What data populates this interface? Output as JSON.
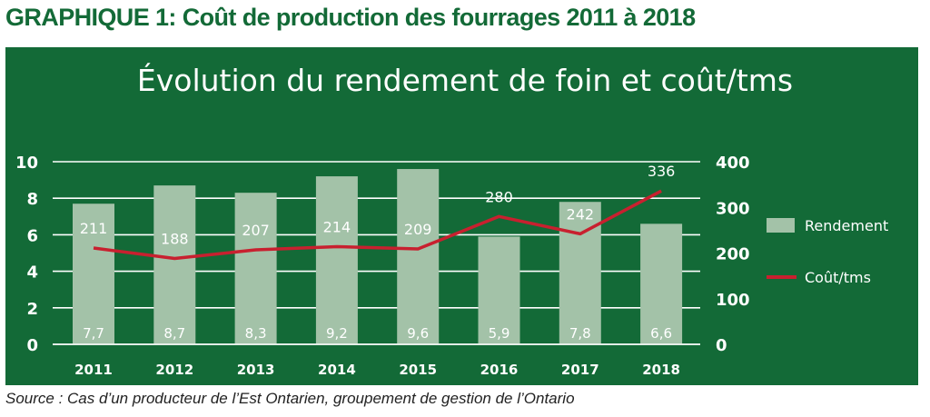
{
  "heading": "GRAPHIQUE 1: Coût de production des fourrages 2011 à 2018",
  "source": "Source : Cas d’un producteur de l’Est Ontarien, groupement de gestion de l’Ontario",
  "colors": {
    "panel": "#136a37",
    "bar": "#a3c2a8",
    "line": "#c8202f",
    "text": "#ffffff"
  },
  "chart_data": {
    "type": "bar",
    "title": "Évolution du rendement de foin et coût/tms",
    "categories": [
      "2011",
      "2012",
      "2013",
      "2014",
      "2015",
      "2016",
      "2017",
      "2018"
    ],
    "series": [
      {
        "name": "Rendement",
        "type": "bar",
        "axis": "left",
        "values": [
          7.7,
          8.7,
          8.3,
          9.2,
          9.6,
          5.9,
          7.8,
          6.6
        ],
        "labels": [
          "7,7",
          "8,7",
          "8,3",
          "9,2",
          "9,6",
          "5,9",
          "7,8",
          "6,6"
        ]
      },
      {
        "name": "Coût/tms",
        "type": "line",
        "axis": "right",
        "values": [
          211,
          188,
          207,
          214,
          209,
          280,
          242,
          336
        ],
        "labels": [
          "211",
          "188",
          "207",
          "214",
          "209",
          "280",
          "242",
          "336"
        ]
      }
    ],
    "left_axis": {
      "ylim": [
        0,
        10
      ],
      "ticks": [
        "0",
        "2",
        "4",
        "6",
        "8",
        "10"
      ]
    },
    "right_axis": {
      "ylim": [
        0,
        400
      ],
      "ticks": [
        "0",
        "100",
        "200",
        "300",
        "400"
      ]
    },
    "grid": true,
    "legend": "right"
  }
}
